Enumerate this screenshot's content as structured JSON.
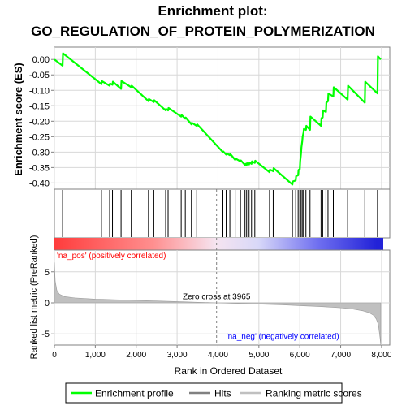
{
  "chart_data": {
    "type": "line",
    "title_line1": "Enrichment plot:",
    "title_line2": "GO_REGULATION_OF_PROTEIN_POLYMERIZATION",
    "es_panel": {
      "ylabel": "Enrichment score (ES)",
      "ylim": [
        -0.42,
        0.04
      ],
      "yticks": [
        0.0,
        -0.05,
        -0.1,
        -0.15,
        -0.2,
        -0.25,
        -0.3,
        -0.35,
        -0.4
      ],
      "ytick_labels": [
        "0.00",
        "-0.05",
        "-0.10",
        "-0.15",
        "-0.20",
        "-0.25",
        "-0.30",
        "-0.35",
        "-0.40"
      ],
      "series_name": "Enrichment profile",
      "color": "#00ff00",
      "x": [
        0,
        200,
        210,
        1150,
        1160,
        1350,
        1360,
        1420,
        1430,
        1630,
        1640,
        1880,
        1890,
        2300,
        2310,
        2430,
        2440,
        2720,
        2730,
        2780,
        2790,
        3100,
        3110,
        3200,
        3210,
        3350,
        3360,
        3480,
        3490,
        4120,
        4130,
        4200,
        4210,
        4290,
        4300,
        4420,
        4430,
        4550,
        4560,
        4660,
        4670,
        4700,
        4710,
        4760,
        4770,
        4820,
        4830,
        4900,
        4910,
        5260,
        5270,
        5350,
        5360,
        5820,
        5830,
        5900,
        5910,
        5960,
        5970,
        6000,
        6010,
        6030,
        6040,
        6060,
        6070,
        6090,
        6100,
        6150,
        6160,
        6250,
        6260,
        6520,
        6530,
        6560,
        6570,
        6640,
        6650,
        6690,
        6700,
        6820,
        6830,
        7170,
        7180,
        7590,
        7600,
        7900,
        7910,
        7980
      ],
      "y": [
        0.0,
        -0.02,
        0.02,
        -0.08,
        -0.07,
        -0.085,
        -0.078,
        -0.082,
        -0.072,
        -0.095,
        -0.07,
        -0.09,
        -0.085,
        -0.135,
        -0.128,
        -0.138,
        -0.132,
        -0.165,
        -0.16,
        -0.165,
        -0.157,
        -0.185,
        -0.18,
        -0.192,
        -0.188,
        -0.21,
        -0.205,
        -0.215,
        -0.21,
        -0.3,
        -0.298,
        -0.308,
        -0.304,
        -0.31,
        -0.306,
        -0.325,
        -0.321,
        -0.33,
        -0.327,
        -0.342,
        -0.338,
        -0.342,
        -0.336,
        -0.34,
        -0.334,
        -0.338,
        -0.33,
        -0.335,
        -0.328,
        -0.365,
        -0.357,
        -0.362,
        -0.352,
        -0.405,
        -0.395,
        -0.392,
        -0.378,
        -0.375,
        -0.358,
        -0.355,
        -0.33,
        -0.305,
        -0.285,
        -0.265,
        -0.25,
        -0.238,
        -0.225,
        -0.228,
        -0.215,
        -0.228,
        -0.185,
        -0.215,
        -0.19,
        -0.188,
        -0.165,
        -0.17,
        -0.14,
        -0.135,
        -0.11,
        -0.12,
        -0.09,
        -0.13,
        -0.085,
        -0.14,
        -0.072,
        -0.11,
        0.01,
        0.0
      ]
    },
    "hits_panel": {
      "series_name": "Hits",
      "hits_x": [
        200,
        1150,
        1350,
        1420,
        1630,
        1880,
        2300,
        2430,
        2720,
        2780,
        3100,
        3200,
        3350,
        3480,
        4120,
        4200,
        4290,
        4420,
        4550,
        4660,
        4700,
        4760,
        4820,
        4900,
        5260,
        5350,
        5820,
        5900,
        5960,
        6000,
        6030,
        6060,
        6090,
        6150,
        6250,
        6520,
        6560,
        6640,
        6690,
        6820,
        7170,
        7590,
        7900
      ]
    },
    "ranked_panel": {
      "ylabel": "Ranked list metric (PreRanked)",
      "xlabel": "Rank in Ordered Dataset",
      "series_name": "Ranking metric scores",
      "ylim": [
        -6.8,
        8.5
      ],
      "yticks": [
        5,
        0,
        -5
      ],
      "ytick_labels": [
        "5",
        "0",
        "-5"
      ],
      "profile_x": [
        0,
        20,
        60,
        120,
        250,
        500,
        1000,
        1500,
        2000,
        2500,
        3000,
        3500,
        3965,
        4500,
        5000,
        5500,
        6000,
        6500,
        7000,
        7300,
        7550,
        7700,
        7800,
        7870,
        7920,
        7960,
        7980
      ],
      "profile_y": [
        6.5,
        3.5,
        2.0,
        1.4,
        1.0,
        0.8,
        0.6,
        0.5,
        0.4,
        0.3,
        0.2,
        0.1,
        0.0,
        -0.1,
        -0.2,
        -0.3,
        -0.45,
        -0.6,
        -0.8,
        -1.0,
        -1.3,
        -1.6,
        -2.0,
        -2.6,
        -3.5,
        -5.5,
        -6.8
      ],
      "zero_cross_label": "Zero cross at 3965",
      "zero_cross_x": 3965,
      "pos_label": "'na_pos' (positively correlated)",
      "neg_label": "'na_neg' (negatively correlated)",
      "fill_color": "#c0c0c0"
    },
    "x_axis": {
      "xlim": [
        0,
        8200
      ],
      "ticks": [
        0,
        1000,
        2000,
        3000,
        4000,
        5000,
        6000,
        7000,
        8000
      ],
      "tick_labels": [
        "0",
        "1,000",
        "2,000",
        "3,000",
        "4,000",
        "5,000",
        "6,000",
        "7,000",
        "8,000"
      ],
      "n_genes": 7980
    },
    "legend": {
      "placement": "bottom",
      "entries": [
        {
          "label": "Enrichment profile",
          "color": "#00ff00"
        },
        {
          "label": "Hits",
          "color": "#808080"
        },
        {
          "label": "Ranking metric scores",
          "color": "#c0c0c0"
        }
      ]
    }
  }
}
